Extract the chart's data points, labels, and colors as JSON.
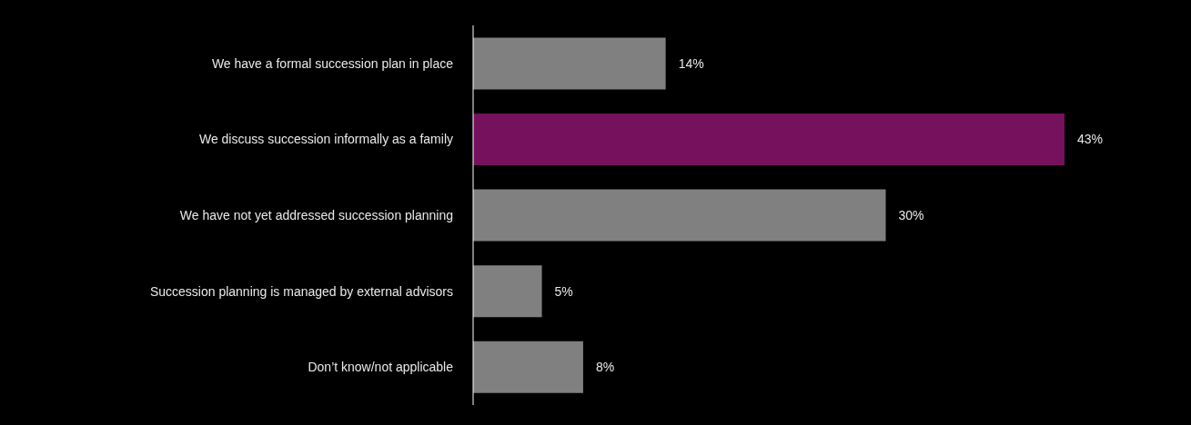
{
  "chart_data": {
    "type": "bar",
    "orientation": "horizontal",
    "categories": [
      "We have a formal succession plan in place",
      "We discuss succession informally as a family",
      "We have not yet addressed succession planning",
      "Succession planning is managed by external advisors",
      "Don’t know/not applicable"
    ],
    "values": [
      14,
      43,
      30,
      5,
      8
    ],
    "colors": [
      "#808080",
      "#76115e",
      "#808080",
      "#808080",
      "#808080"
    ],
    "value_labels": [
      "14%",
      "43%",
      "30%",
      "5%",
      "8%"
    ]
  }
}
